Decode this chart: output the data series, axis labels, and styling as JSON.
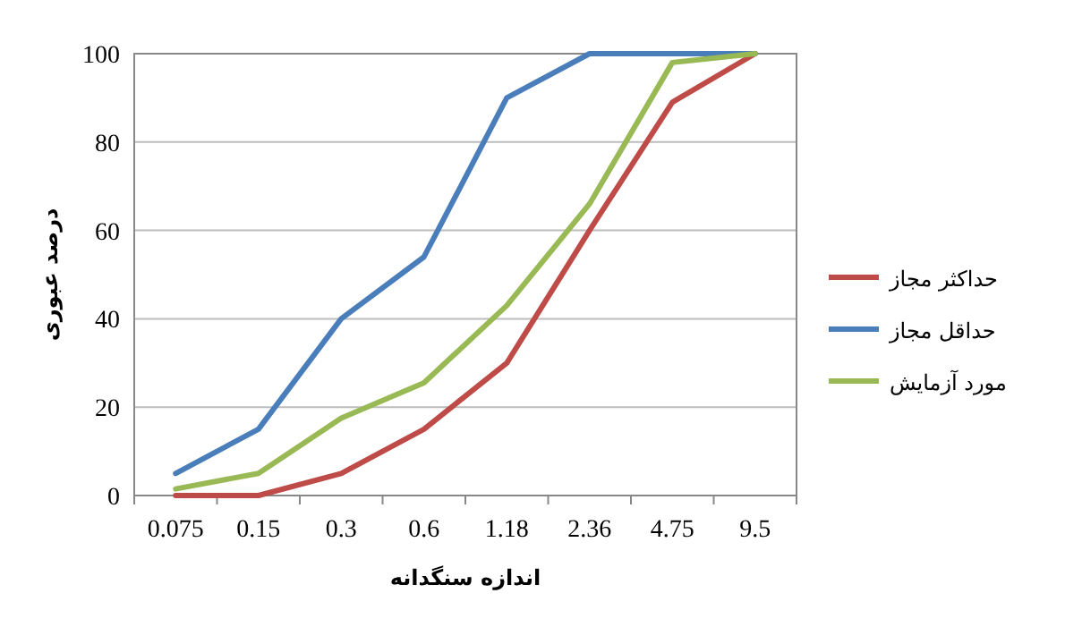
{
  "chart_data": {
    "type": "line",
    "xlabel": "اندازه سنگدانه",
    "ylabel": "درصد عبوری",
    "categories": [
      "0.075",
      "0.15",
      "0.3",
      "0.6",
      "1.18",
      "2.36",
      "4.75",
      "9.5"
    ],
    "series": [
      {
        "name": "حداکثر مجاز",
        "color": "#be4b48",
        "values": [
          0,
          0,
          5,
          15,
          30,
          60,
          89,
          100
        ]
      },
      {
        "name": "حداقل مجاز",
        "color": "#4a7ebb",
        "values": [
          5,
          15,
          40,
          54,
          90,
          100,
          100,
          100
        ]
      },
      {
        "name": "مورد آزمایش",
        "color": "#98b954",
        "values": [
          1.5,
          5,
          17.5,
          25.5,
          43,
          66,
          98,
          100
        ]
      }
    ],
    "ylim": [
      0,
      100
    ],
    "yticks": [
      0,
      20,
      40,
      60,
      80,
      100
    ],
    "grid": "y",
    "legend": "right",
    "marker": "none",
    "line_style": "solid"
  }
}
